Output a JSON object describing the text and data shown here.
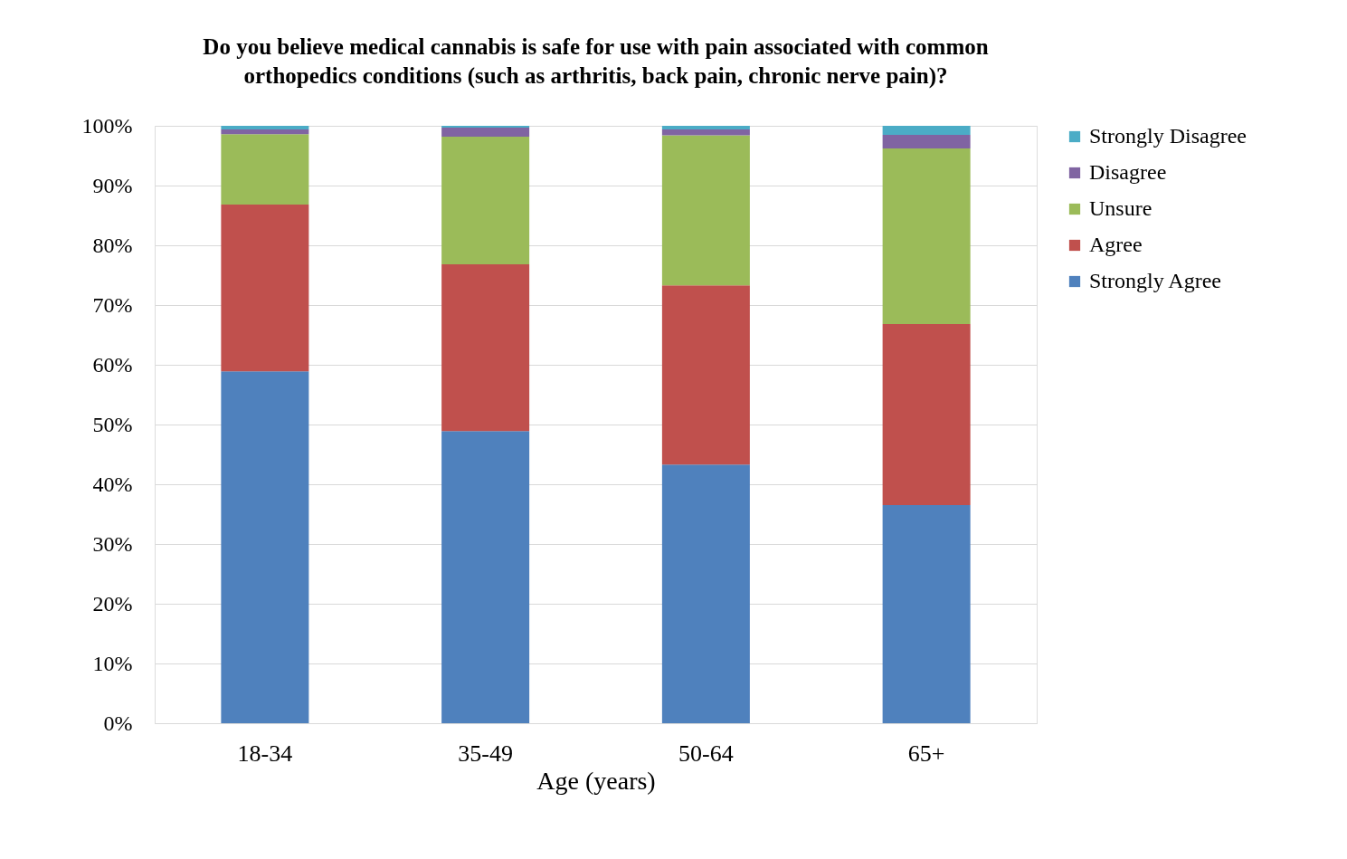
{
  "chart_data": {
    "type": "bar",
    "title": "Do you believe medical cannabis is safe for use with pain associated with common orthopedics conditions (such as arthritis, back pain, chronic nerve pain)?",
    "xlabel": "Age (years)",
    "categories": [
      "18-34",
      "35-49",
      "50-64",
      "65+"
    ],
    "stacked": true,
    "series": [
      {
        "name": "Strongly Agree",
        "color": "#4f81bd",
        "values": [
          58.9,
          48.9,
          43.3,
          36.5
        ]
      },
      {
        "name": "Agree",
        "color": "#c0504d",
        "values": [
          27.9,
          27.9,
          30.0,
          30.3
        ]
      },
      {
        "name": "Unsure",
        "color": "#9bbb59",
        "values": [
          11.8,
          21.4,
          25.1,
          29.4
        ]
      },
      {
        "name": "Disagree",
        "color": "#8064a2",
        "values": [
          0.8,
          1.5,
          1.0,
          2.3
        ]
      },
      {
        "name": "Strongly Disagree",
        "color": "#4bacc6",
        "values": [
          0.6,
          0.3,
          0.6,
          1.5
        ]
      }
    ],
    "ylim": [
      0,
      100
    ],
    "yticks": [
      {
        "value": 0,
        "label": "0%"
      },
      {
        "value": 10,
        "label": "10%"
      },
      {
        "value": 20,
        "label": "20%"
      },
      {
        "value": 30,
        "label": "30%"
      },
      {
        "value": 40,
        "label": "40%"
      },
      {
        "value": 50,
        "label": "50%"
      },
      {
        "value": 60,
        "label": "60%"
      },
      {
        "value": 70,
        "label": "70%"
      },
      {
        "value": 80,
        "label": "80%"
      },
      {
        "value": 90,
        "label": "90%"
      },
      {
        "value": 100,
        "label": "100%"
      }
    ],
    "grid": "y",
    "legend": "right"
  }
}
